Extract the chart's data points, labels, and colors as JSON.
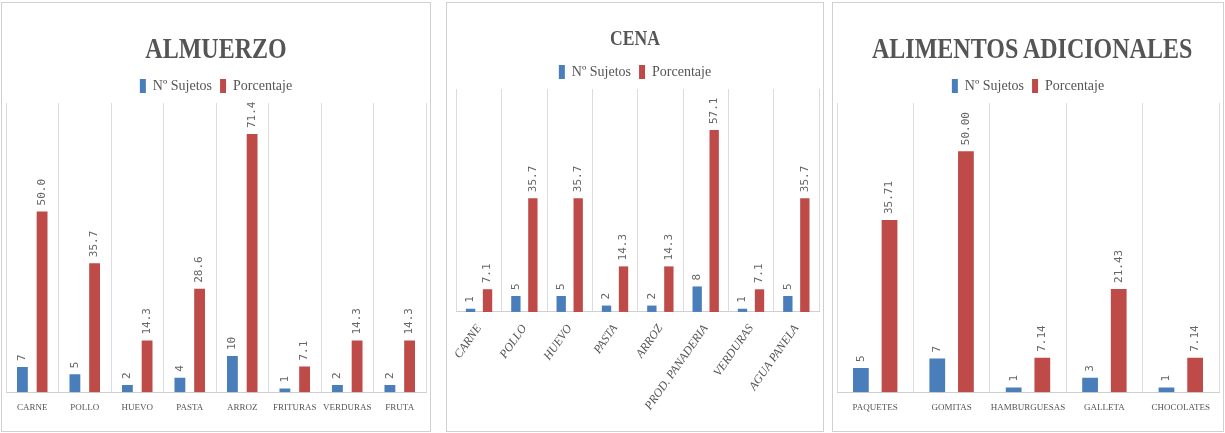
{
  "chart_data": [
    {
      "type": "bar",
      "title": "ALMUERZO",
      "categories": [
        "CARNE",
        "POLLO",
        "HUEVO",
        "PASTA",
        "ARROZ",
        "FRITURAS",
        "VERDURAS",
        "FRUTA"
      ],
      "legend": "top",
      "grid": "x",
      "series": [
        {
          "name": "Nº Sujetos",
          "color": "#4a7ebb",
          "values": [
            7,
            5,
            2,
            4,
            10,
            1,
            2,
            2
          ],
          "value_labels": [
            "7",
            "5",
            "2",
            "4",
            "10",
            "1",
            "2",
            "2"
          ]
        },
        {
          "name": "Porcentaje",
          "color": "#be4b48",
          "values": [
            50.0,
            35.7,
            14.3,
            28.6,
            71.4,
            7.1,
            14.3,
            14.3
          ],
          "value_labels": [
            "50.0",
            "35.7",
            "14.3",
            "28.6",
            "71.4",
            "7.1",
            "14.3",
            "14.3"
          ]
        }
      ]
    },
    {
      "type": "bar",
      "title": "CENA",
      "categories": [
        "CARNE",
        "POLLO",
        "HUEVO",
        "PASTA",
        "ARROZ",
        "PROD. PANADERIA",
        "VERDURAS",
        "AGUA PANELA"
      ],
      "legend": "top",
      "grid": "x",
      "series": [
        {
          "name": "Nº Sujetos",
          "color": "#4a7ebb",
          "values": [
            1,
            5,
            5,
            2,
            2,
            8,
            1,
            5
          ],
          "value_labels": [
            "1",
            "5",
            "5",
            "2",
            "2",
            "8",
            "1",
            "5"
          ]
        },
        {
          "name": "Porcentaje",
          "color": "#be4b48",
          "values": [
            7.1,
            35.7,
            35.7,
            14.3,
            14.3,
            57.1,
            7.1,
            35.7
          ],
          "value_labels": [
            "7.1",
            "35.7",
            "35.7",
            "14.3",
            "14.3",
            "57.1",
            "7.1",
            "35.7"
          ]
        }
      ]
    },
    {
      "type": "bar",
      "title": "ALIMENTOS ADICIONALES",
      "categories": [
        "PAQUETES",
        "GOMITAS",
        "HAMBURGUESAS",
        "GALLETA",
        "CHOCOLATES"
      ],
      "legend": "top",
      "grid": "x",
      "series": [
        {
          "name": "Nº Sujetos",
          "color": "#4a7ebb",
          "values": [
            5,
            7,
            1,
            3,
            1
          ],
          "value_labels": [
            "5",
            "7",
            "1",
            "3",
            "1"
          ]
        },
        {
          "name": "Porcentaje",
          "color": "#be4b48",
          "values": [
            35.71,
            50.0,
            7.14,
            21.43,
            7.14
          ],
          "value_labels": [
            "35.71",
            "50.00",
            "7.14",
            "21.43",
            "7.14"
          ]
        }
      ]
    }
  ]
}
